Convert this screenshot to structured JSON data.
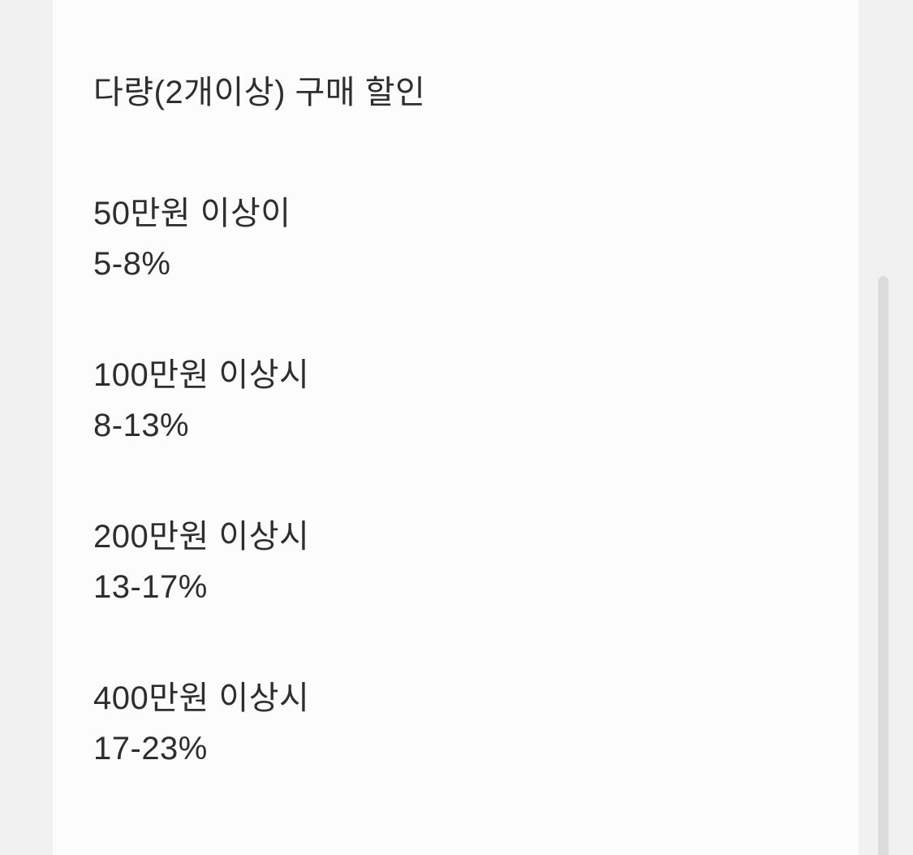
{
  "page": {
    "title": "다량(2개이상) 구매 할인",
    "tiers": [
      {
        "threshold": "50만원 이상이",
        "discount": "5-8%"
      },
      {
        "threshold": "100만원 이상시",
        "discount": "8-13%"
      },
      {
        "threshold": "200만원 이상시",
        "discount": "13-17%"
      },
      {
        "threshold": "400만원 이상시",
        "discount": "17-23%"
      }
    ]
  },
  "colors": {
    "text": "#2e2e2e",
    "content_background": "#fcfcfc",
    "gutter_background": "#f1f1f1",
    "scrollbar_thumb": "#dcdcdc"
  }
}
